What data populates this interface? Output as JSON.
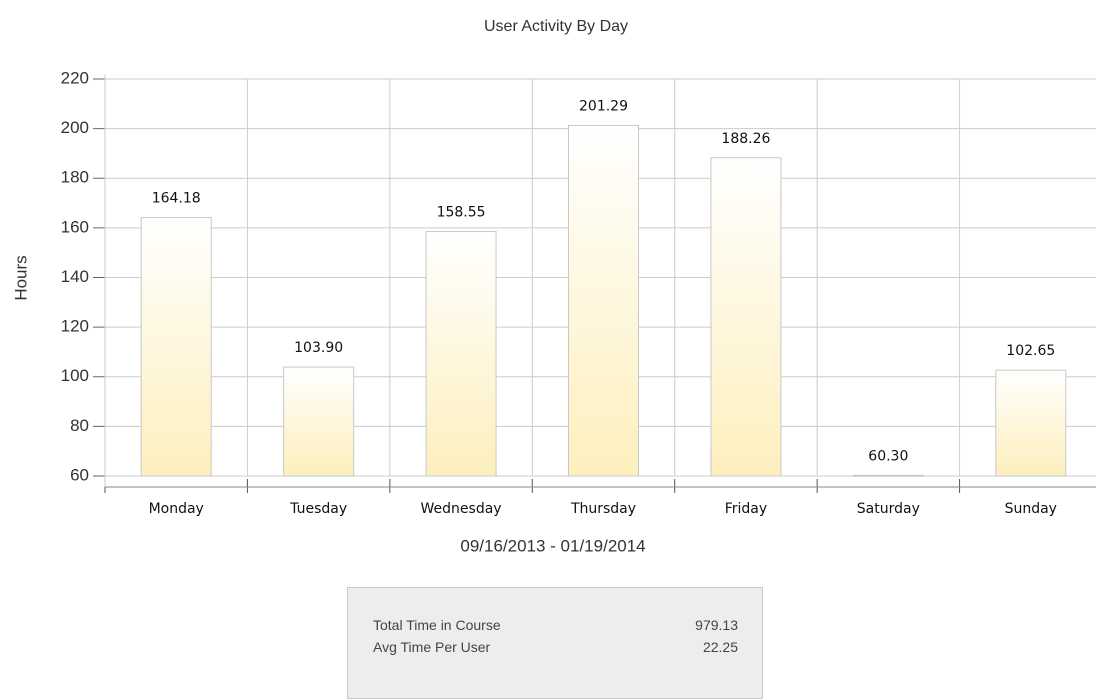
{
  "chart_data": {
    "type": "bar",
    "title": "User Activity By Day",
    "y_label": "Hours",
    "x_label": "09/16/2013 - 01/19/2014",
    "categories": [
      "Monday",
      "Tuesday",
      "Wednesday",
      "Thursday",
      "Friday",
      "Saturday",
      "Sunday"
    ],
    "values": [
      164.18,
      103.9,
      158.55,
      201.29,
      188.26,
      60.3,
      102.65
    ],
    "value_labels": [
      "164.18",
      "103.90",
      "158.55",
      "201.29",
      "188.26",
      "60.30",
      "102.65"
    ],
    "color": "#fdefbd",
    "ylim": [
      60,
      220
    ],
    "yticks": [
      60,
      80,
      100,
      120,
      140,
      160,
      180,
      200,
      220
    ],
    "grid": true
  },
  "summary": {
    "rows": [
      [
        "Total Time in Course",
        "979.13"
      ],
      [
        "Avg Time Per User",
        "22.25"
      ]
    ]
  }
}
